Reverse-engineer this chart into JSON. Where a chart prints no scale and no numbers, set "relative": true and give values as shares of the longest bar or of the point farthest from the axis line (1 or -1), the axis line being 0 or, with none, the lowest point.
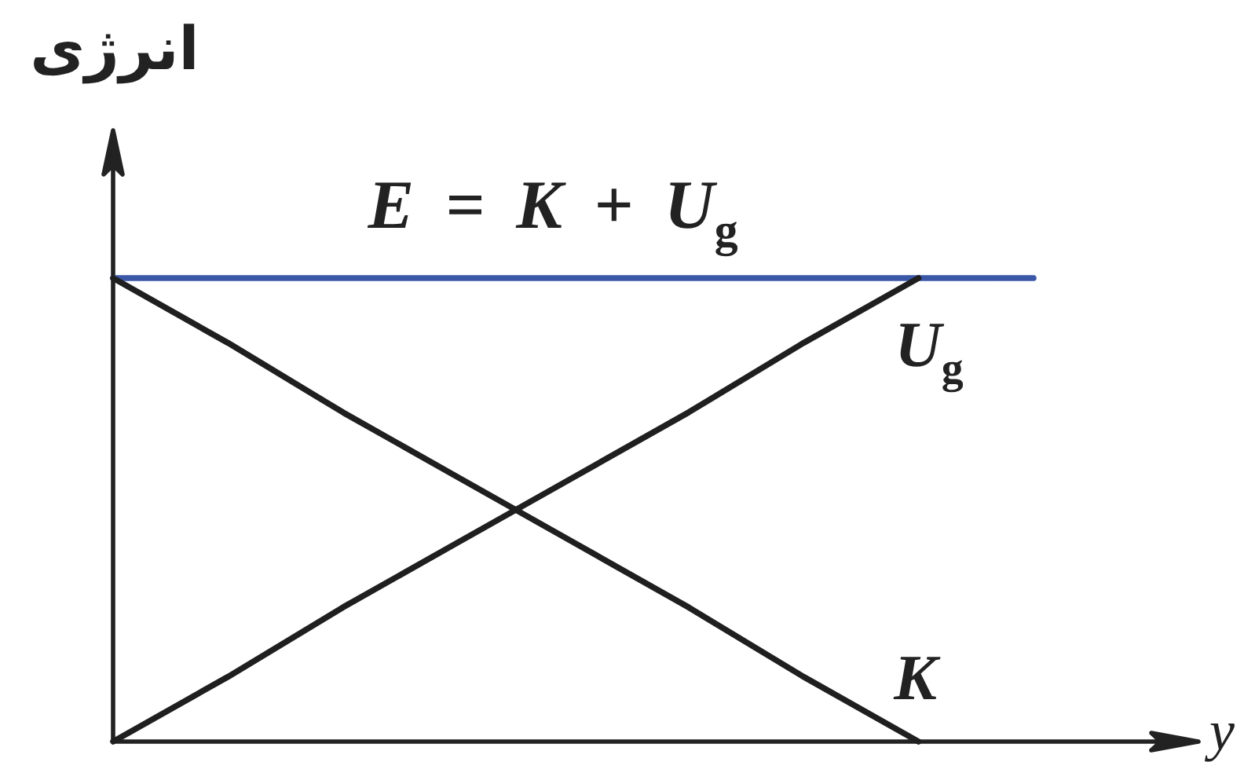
{
  "chart_data": {
    "type": "line",
    "relative": true,
    "xlabel": "y",
    "ylabel": "انرژی",
    "categories": [
      null,
      null,
      null,
      null,
      null,
      null,
      null,
      null,
      null
    ],
    "series": [
      {
        "name": "E = K + U$_{g}$",
        "color": "#3b58a8",
        "values": [
          1,
          1,
          1,
          1,
          1,
          1,
          1,
          1,
          1
        ]
      },
      {
        "name": "K",
        "color": "#1f1f1f",
        "values": [
          1,
          0.86,
          0.71,
          0.57,
          0.43,
          0.29,
          0.14,
          0,
          null
        ]
      },
      {
        "name": "U$_{g}$",
        "color": "#1f1f1f",
        "values": [
          0,
          0.14,
          0.29,
          0.43,
          0.57,
          0.71,
          0.86,
          1,
          null
        ]
      }
    ]
  }
}
